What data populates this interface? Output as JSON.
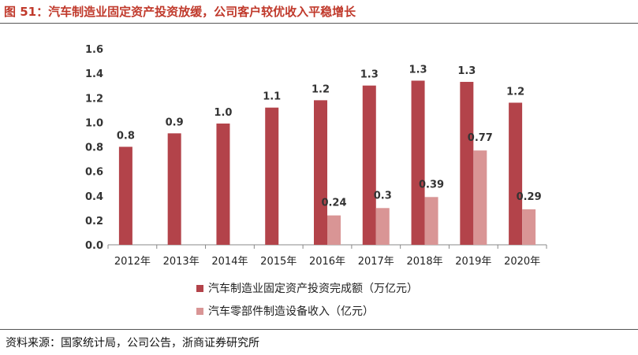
{
  "figure": {
    "title": "图 51：汽车制造业固定资产投资放缓，公司客户较优收入平稳增长",
    "source": "资料来源：国家统计局，公司公告，浙商证券研究所"
  },
  "colors": {
    "title": "#c0392b",
    "series1": "#b3434a",
    "series2": "#d99595",
    "axis": "#888888"
  },
  "chart_data": {
    "type": "bar",
    "categories": [
      "2012年",
      "2013年",
      "2014年",
      "2015年",
      "2016年",
      "2017年",
      "2018年",
      "2019年",
      "2020年"
    ],
    "ylim": [
      0,
      1.6
    ],
    "yticks": [
      "0.0",
      "0.2",
      "0.4",
      "0.6",
      "0.8",
      "1.0",
      "1.2",
      "1.4",
      "1.6"
    ],
    "grid": false,
    "legend_position": "bottom",
    "series": [
      {
        "name": "汽车制造业固定资产投资完成额（万亿元）",
        "values": [
          0.8,
          0.91,
          0.99,
          1.12,
          1.18,
          1.3,
          1.34,
          1.33,
          1.16
        ],
        "labels": [
          "0.8",
          "0.9",
          "1.0",
          "1.1",
          "1.2",
          "1.3",
          "1.3",
          "1.3",
          "1.2"
        ]
      },
      {
        "name": "汽车零部件制造设备收入（亿元）",
        "values": [
          null,
          null,
          null,
          null,
          0.24,
          0.3,
          0.39,
          0.77,
          0.29
        ],
        "labels": [
          "",
          "",
          "",
          "",
          "0.24",
          "0.3",
          "0.39",
          "0.77",
          "0.29"
        ]
      }
    ]
  }
}
